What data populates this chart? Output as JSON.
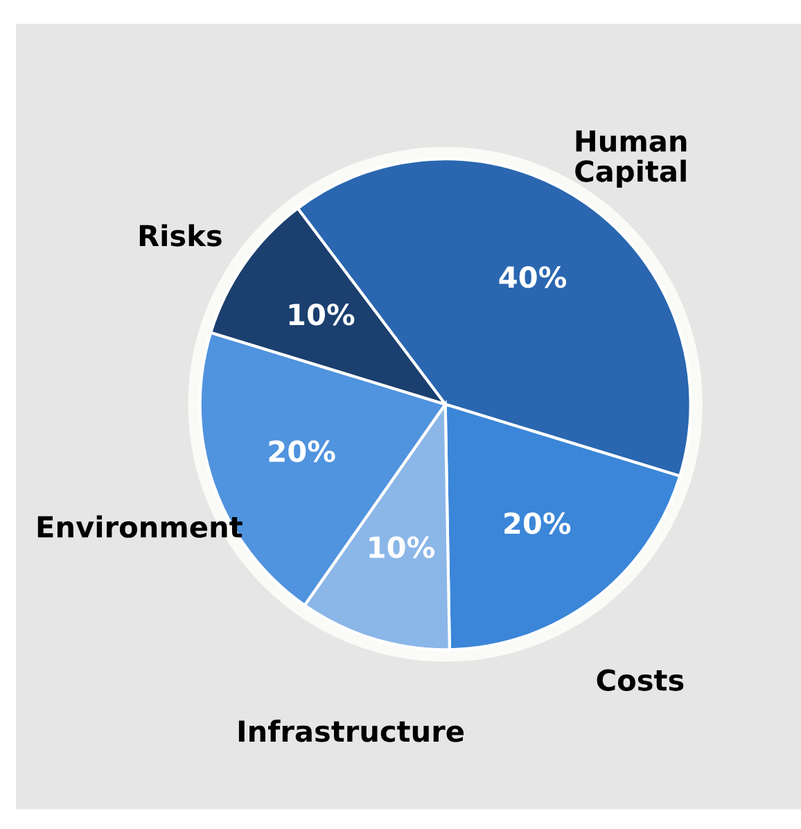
{
  "chart_data": {
    "type": "pie",
    "categories": [
      "Human\nCapital",
      "Costs",
      "Infrastructure",
      "Environment",
      "Risks"
    ],
    "values": [
      40,
      20,
      10,
      20,
      10
    ],
    "colors": [
      "#2a67b0",
      "#3b86d8",
      "#8bb6e8",
      "#5093de",
      "#1b3f6e"
    ],
    "value_labels": [
      "40%",
      "20%",
      "10%",
      "20%",
      "10%"
    ]
  }
}
